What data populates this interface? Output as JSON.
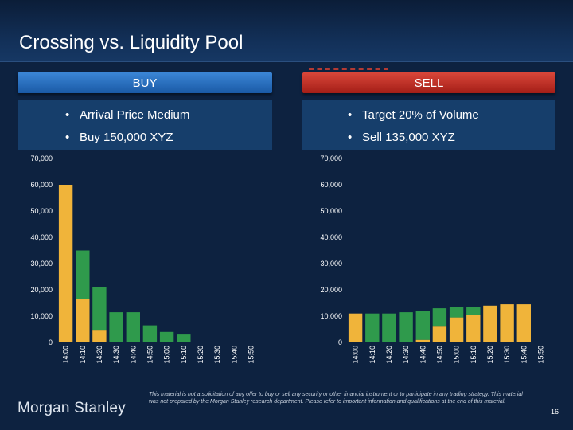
{
  "title": "Crossing vs. Liquidity Pool",
  "buy_header": "BUY",
  "sell_header": "SELL",
  "buy_bullets": [
    "Arrival Price Medium",
    "Buy 150,000 XYZ"
  ],
  "sell_bullets": [
    "Target 20% of Volume",
    "Sell 135,000 XYZ"
  ],
  "bullet_symbol": "•",
  "colors": {
    "green": "#2f9a4c",
    "orange": "#f0b43a",
    "buy_header": "#2a72c2",
    "sell_header": "#c2302a",
    "background": "#0d2240"
  },
  "chart_data": [
    {
      "type": "bar",
      "stacked": true,
      "name": "buy",
      "categories": [
        "14:00",
        "14:10",
        "14:20",
        "14:30",
        "14:40",
        "14:50",
        "15:00",
        "15:10",
        "15:20",
        "15:30",
        "15:40",
        "15:50"
      ],
      "series": [
        {
          "name": "orange",
          "values": [
            60000,
            16500,
            4500,
            0,
            0,
            0,
            0,
            0,
            0,
            0,
            0,
            0
          ]
        },
        {
          "name": "green",
          "values": [
            0,
            18500,
            16500,
            11500,
            11500,
            6500,
            4000,
            3000,
            0,
            0,
            0,
            0
          ]
        }
      ],
      "ylim": [
        0,
        70000
      ],
      "yticks": [
        "0",
        "10,000",
        "20,000",
        "30,000",
        "40,000",
        "50,000",
        "60,000",
        "70,000"
      ]
    },
    {
      "type": "bar",
      "stacked": true,
      "name": "sell",
      "categories": [
        "14:00",
        "14:10",
        "14:20",
        "14:30",
        "14:40",
        "14:50",
        "15:00",
        "15:10",
        "15:20",
        "15:30",
        "15:40",
        "15:50"
      ],
      "series": [
        {
          "name": "orange",
          "values": [
            11000,
            0,
            0,
            0,
            1000,
            6000,
            9500,
            10500,
            14000,
            14500,
            14500,
            0
          ]
        },
        {
          "name": "green",
          "values": [
            0,
            11000,
            11000,
            11500,
            11000,
            7000,
            4000,
            3000,
            0,
            0,
            0,
            0
          ]
        }
      ],
      "ylim": [
        0,
        70000
      ],
      "yticks": [
        "0",
        "10,000",
        "20,000",
        "30,000",
        "40,000",
        "50,000",
        "60,000",
        "70,000"
      ]
    }
  ],
  "logo": "Morgan Stanley",
  "disclaimer": "This material is not a solicitation of any offer to buy or sell any security or other financial instrument or to participate in any trading strategy. This material was not prepared by the Morgan Stanley research department. Please refer to important information and qualifications at the end of this material.",
  "page_number": "16"
}
